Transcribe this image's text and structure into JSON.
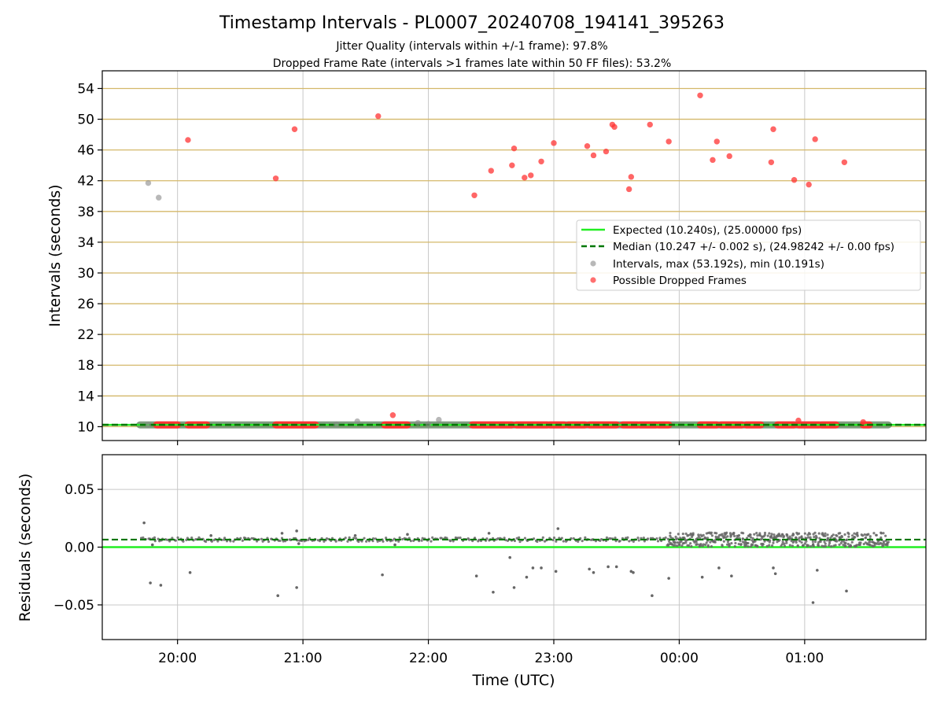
{
  "figure": {
    "title": "Timestamp Intervals - PL0007_20240708_194141_395263",
    "subtitle_1": "Jitter Quality (intervals within +/-1 frame): 97.8%",
    "subtitle_2": "Dropped Frame Rate (intervals >1 frames late within 50 FF files): 53.2%",
    "xlabel": "Time (UTC)"
  },
  "colors": {
    "expected_line": "#22ee22",
    "median_line": "#007700",
    "interval_points": "#888888",
    "dropped_points": "#ff3333",
    "band_line": "#d4b86a",
    "grid": "#c8c8c8",
    "axes": "#000000"
  },
  "chart_data": [
    {
      "type": "scatter",
      "panel": "top",
      "ylabel": "Intervals (seconds)",
      "xlim": [
        "19:24",
        "01:58"
      ],
      "ylim": [
        8.2,
        56.3
      ],
      "x_ticks": [
        "20:00",
        "21:00",
        "22:00",
        "23:00",
        "00:00",
        "01:00"
      ],
      "y_ticks": [
        "10",
        "14",
        "18",
        "22",
        "26",
        "30",
        "34",
        "38",
        "42",
        "46",
        "50",
        "54"
      ],
      "horizontal_bands": [
        10,
        14,
        18,
        22,
        26,
        30,
        34,
        38,
        42,
        46,
        50,
        54
      ],
      "grid": "vertical",
      "legend_position": "center-right",
      "legend": {
        "expected": "Expected (10.240s), (25.00000 fps)",
        "median": "Median (10.247 +/- 0.002 s), (24.98242 +/- 0.00 fps)",
        "intervals": "Intervals, max (53.192s), min (10.191s)",
        "dropped": "Possible Dropped Frames"
      },
      "expected_value": 10.24,
      "median_value": 10.247,
      "baseline_span": [
        "19:42",
        "01:40"
      ],
      "baseline_value": 10.24,
      "dropped_baseline_runs": [
        [
          "19:50",
          "20:00"
        ],
        [
          "20:05",
          "20:14"
        ],
        [
          "20:47",
          "21:06"
        ],
        [
          "21:39",
          "21:50"
        ],
        [
          "22:21",
          "22:40"
        ],
        [
          "22:42",
          "22:57"
        ],
        [
          "22:58",
          "23:05"
        ],
        [
          "23:07",
          "23:15"
        ],
        [
          "23:17",
          "23:30"
        ],
        [
          "23:33",
          "23:40"
        ],
        [
          "23:41",
          "23:49"
        ],
        [
          "23:50",
          "23:55"
        ],
        [
          "00:10",
          "00:18"
        ],
        [
          "00:20",
          "00:30"
        ],
        [
          "00:32",
          "00:39"
        ],
        [
          "00:47",
          "00:55"
        ],
        [
          "00:57",
          "01:07"
        ],
        [
          "01:08",
          "01:15"
        ],
        [
          "01:28",
          "01:31"
        ]
      ],
      "intervals": [
        {
          "x": "19:46",
          "y": 41.7
        },
        {
          "x": "19:51",
          "y": 39.8
        },
        {
          "x": "21:26",
          "y": 10.7
        },
        {
          "x": "21:55",
          "y": 10.5
        },
        {
          "x": "22:05",
          "y": 10.9
        },
        {
          "x": "19:46",
          "y": 10.24
        },
        {
          "x": "21:16",
          "y": 10.3
        },
        {
          "x": "22:00",
          "y": 10.35
        }
      ],
      "dropped": [
        {
          "x": "20:05",
          "y": 47.3
        },
        {
          "x": "20:47",
          "y": 42.3
        },
        {
          "x": "20:56",
          "y": 48.7
        },
        {
          "x": "21:36",
          "y": 50.4
        },
        {
          "x": "21:43",
          "y": 11.5
        },
        {
          "x": "22:22",
          "y": 40.1
        },
        {
          "x": "22:30",
          "y": 43.3
        },
        {
          "x": "22:40",
          "y": 44.0
        },
        {
          "x": "22:41",
          "y": 46.2
        },
        {
          "x": "22:46",
          "y": 42.4
        },
        {
          "x": "22:49",
          "y": 42.7
        },
        {
          "x": "22:54",
          "y": 44.5
        },
        {
          "x": "23:00",
          "y": 46.9
        },
        {
          "x": "23:16",
          "y": 46.5
        },
        {
          "x": "23:19",
          "y": 45.3
        },
        {
          "x": "23:25",
          "y": 45.8
        },
        {
          "x": "23:28",
          "y": 49.3
        },
        {
          "x": "23:29",
          "y": 49.0
        },
        {
          "x": "23:36",
          "y": 40.9
        },
        {
          "x": "23:37",
          "y": 42.5
        },
        {
          "x": "23:46",
          "y": 49.3
        },
        {
          "x": "23:55",
          "y": 47.1
        },
        {
          "x": "00:10",
          "y": 53.1
        },
        {
          "x": "00:16",
          "y": 44.7
        },
        {
          "x": "00:18",
          "y": 47.1
        },
        {
          "x": "00:24",
          "y": 45.2
        },
        {
          "x": "00:44",
          "y": 44.4
        },
        {
          "x": "00:45",
          "y": 48.7
        },
        {
          "x": "00:55",
          "y": 42.1
        },
        {
          "x": "00:57",
          "y": 10.8
        },
        {
          "x": "01:02",
          "y": 41.5
        },
        {
          "x": "01:05",
          "y": 47.4
        },
        {
          "x": "01:19",
          "y": 44.4
        },
        {
          "x": "01:28",
          "y": 10.6
        }
      ]
    },
    {
      "type": "scatter",
      "panel": "bottom",
      "ylabel": "Residuals (seconds)",
      "xlim": [
        "19:24",
        "01:58"
      ],
      "ylim": [
        -0.08,
        0.08
      ],
      "x_ticks": [
        "20:00",
        "21:00",
        "22:00",
        "23:00",
        "00:00",
        "01:00"
      ],
      "y_ticks": [
        "0.05",
        "0.00",
        "−0.05"
      ],
      "y_tick_values": [
        0.05,
        0.0,
        -0.05
      ],
      "grid": "both",
      "expected_value": 0.0,
      "median_value": 0.0065,
      "cluster_span": [
        "19:42",
        "01:40"
      ],
      "dense_span": [
        "23:54",
        "01:40"
      ],
      "residuals": [
        {
          "x": "19:44",
          "y": 0.021
        },
        {
          "x": "19:47",
          "y": -0.031
        },
        {
          "x": "19:48",
          "y": 0.002
        },
        {
          "x": "19:52",
          "y": -0.033
        },
        {
          "x": "20:06",
          "y": -0.022
        },
        {
          "x": "20:48",
          "y": -0.042
        },
        {
          "x": "20:57",
          "y": 0.014
        },
        {
          "x": "20:57",
          "y": -0.035
        },
        {
          "x": "20:58",
          "y": 0.003
        },
        {
          "x": "21:38",
          "y": -0.024
        },
        {
          "x": "21:44",
          "y": 0.002
        },
        {
          "x": "22:23",
          "y": -0.025
        },
        {
          "x": "22:31",
          "y": -0.039
        },
        {
          "x": "22:39",
          "y": -0.009
        },
        {
          "x": "22:41",
          "y": -0.035
        },
        {
          "x": "22:47",
          "y": -0.026
        },
        {
          "x": "22:50",
          "y": -0.018
        },
        {
          "x": "22:54",
          "y": -0.018
        },
        {
          "x": "23:01",
          "y": -0.021
        },
        {
          "x": "23:02",
          "y": 0.016
        },
        {
          "x": "23:17",
          "y": -0.019
        },
        {
          "x": "23:19",
          "y": -0.022
        },
        {
          "x": "23:26",
          "y": -0.017
        },
        {
          "x": "23:30",
          "y": -0.017
        },
        {
          "x": "23:37",
          "y": -0.021
        },
        {
          "x": "23:38",
          "y": -0.022
        },
        {
          "x": "23:47",
          "y": -0.042
        },
        {
          "x": "23:55",
          "y": -0.027
        },
        {
          "x": "00:11",
          "y": -0.026
        },
        {
          "x": "00:19",
          "y": -0.018
        },
        {
          "x": "00:25",
          "y": -0.025
        },
        {
          "x": "00:45",
          "y": -0.018
        },
        {
          "x": "00:46",
          "y": -0.023
        },
        {
          "x": "01:04",
          "y": -0.048
        },
        {
          "x": "01:06",
          "y": -0.02
        },
        {
          "x": "01:20",
          "y": -0.038
        },
        {
          "x": "22:29",
          "y": 0.012
        },
        {
          "x": "21:50",
          "y": 0.011
        },
        {
          "x": "21:25",
          "y": 0.01
        },
        {
          "x": "20:16",
          "y": 0.01
        },
        {
          "x": "20:50",
          "y": 0.012
        }
      ]
    }
  ]
}
